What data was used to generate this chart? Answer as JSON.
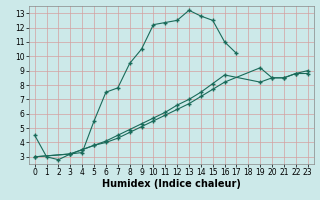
{
  "title": "",
  "xlabel": "Humidex (Indice chaleur)",
  "bg_color": "#cce9e9",
  "grid_color_major": "#b8d8d8",
  "grid_color_minor": "#d4ecec",
  "line_color": "#1a6b5a",
  "xlim": [
    -0.5,
    23.5
  ],
  "ylim": [
    2.5,
    13.5
  ],
  "xticks": [
    0,
    1,
    2,
    3,
    4,
    5,
    6,
    7,
    8,
    9,
    10,
    11,
    12,
    13,
    14,
    15,
    16,
    17,
    18,
    19,
    20,
    21,
    22,
    23
  ],
  "yticks": [
    3,
    4,
    5,
    6,
    7,
    8,
    9,
    10,
    11,
    12,
    13
  ],
  "curve1_x": [
    0,
    1,
    2,
    3,
    4,
    5,
    6,
    7,
    8,
    9,
    10,
    11,
    12,
    13,
    14,
    15,
    16,
    17
  ],
  "curve1_y": [
    4.5,
    3.0,
    2.8,
    3.2,
    3.3,
    5.5,
    7.5,
    7.8,
    9.5,
    10.5,
    12.2,
    12.35,
    12.5,
    13.2,
    12.8,
    12.5,
    11.0,
    10.2
  ],
  "curve2_x": [
    0,
    3,
    4,
    5,
    6,
    7,
    8,
    9,
    10,
    11,
    12,
    13,
    14,
    15,
    16,
    19,
    20,
    21,
    22,
    23
  ],
  "curve2_y": [
    3.0,
    3.2,
    3.5,
    3.8,
    4.0,
    4.3,
    4.7,
    5.1,
    5.5,
    5.9,
    6.3,
    6.7,
    7.2,
    7.7,
    8.2,
    9.2,
    8.5,
    8.5,
    8.8,
    9.0
  ],
  "curve3_x": [
    0,
    3,
    4,
    5,
    6,
    7,
    8,
    9,
    10,
    11,
    12,
    13,
    14,
    15,
    16,
    19,
    20,
    21,
    22,
    23
  ],
  "curve3_y": [
    3.0,
    3.2,
    3.5,
    3.8,
    4.1,
    4.5,
    4.9,
    5.3,
    5.7,
    6.1,
    6.6,
    7.0,
    7.5,
    8.1,
    8.7,
    8.2,
    8.5,
    8.5,
    8.8,
    8.8
  ],
  "xlabel_fontsize": 7,
  "tick_fontsize": 5.5
}
